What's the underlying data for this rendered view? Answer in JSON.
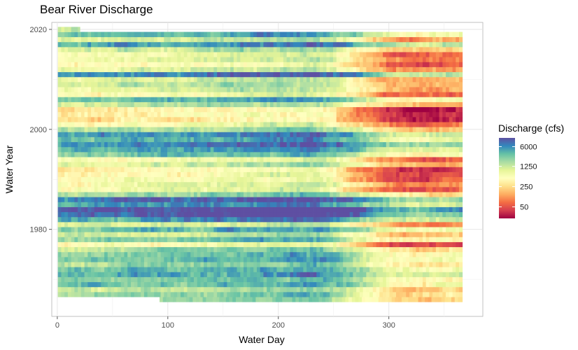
{
  "chart_data": {
    "type": "heatmap",
    "title": "Bear River Discharge",
    "xlabel": "Water Day",
    "ylabel": "Water Year",
    "xlim": [
      -5,
      385
    ],
    "ylim": [
      1962.6,
      2021.4
    ],
    "x_ticks": [
      0,
      100,
      200,
      300
    ],
    "y_ticks": [
      1980,
      2000,
      2020
    ],
    "x_range": [
      1,
      366
    ],
    "y_range": [
      1966,
      2020
    ],
    "first_year_start_day": 93,
    "last_year_end_day": 20,
    "grid": true,
    "legend": {
      "title": "Discharge (cfs)",
      "placement": "right",
      "scale": "log",
      "breaks": [
        6000,
        1250,
        250,
        50
      ],
      "min": 20,
      "max": 12000
    },
    "seasonal_profile": {
      "day": [
        1,
        60,
        120,
        180,
        230,
        260,
        300,
        330,
        366
      ],
      "log10_cfs": [
        3.2,
        3.3,
        3.35,
        3.45,
        3.55,
        3.2,
        2.55,
        2.45,
        2.6
      ]
    },
    "year_wetness_log10": {
      "1966": -0.1,
      "1967": 0.0,
      "1968": -0.2,
      "1969": 0.2,
      "1970": 0.1,
      "1971": 0.3,
      "1972": 0.2,
      "1973": 0.0,
      "1974": 0.2,
      "1975": 0.1,
      "1976": -0.1,
      "1977": -0.6,
      "1978": 0.1,
      "1979": -0.2,
      "1980": 0.2,
      "1981": -0.3,
      "1982": 0.4,
      "1983": 0.7,
      "1984": 0.8,
      "1985": 0.4,
      "1986": 0.6,
      "1987": 0.0,
      "1988": -0.5,
      "1989": -0.4,
      "1990": -0.6,
      "1991": -0.6,
      "1992": -0.7,
      "1993": -0.2,
      "1994": -0.5,
      "1995": 0.1,
      "1996": 0.3,
      "1997": 0.5,
      "1998": 0.3,
      "1999": 0.4,
      "2000": -0.1,
      "2001": -0.5,
      "2002": -0.8,
      "2003": -0.7,
      "2004": -0.8,
      "2005": -0.2,
      "2006": 0.2,
      "2007": -0.5,
      "2008": -0.3,
      "2009": -0.2,
      "2010": -0.3,
      "2011": 0.5,
      "2012": -0.3,
      "2013": -0.6,
      "2014": -0.4,
      "2015": -0.5,
      "2016": -0.2,
      "2017": 0.4,
      "2018": -0.3,
      "2019": 0.2,
      "2020": -0.1
    },
    "colors": [
      "#5E4FA2",
      "#3288BD",
      "#66C2A5",
      "#ABDDA4",
      "#E6F598",
      "#FFFFBF",
      "#FEE08B",
      "#FDAE61",
      "#F46D43",
      "#D53E4F",
      "#9E0142"
    ]
  }
}
